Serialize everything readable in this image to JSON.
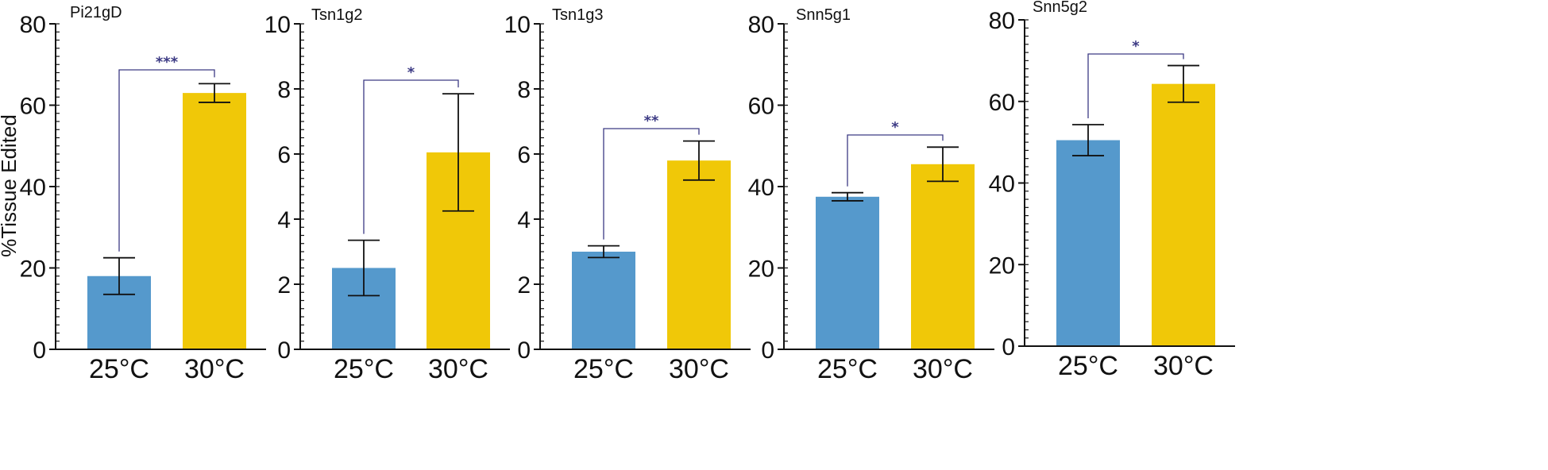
{
  "chart_data": {
    "type": "bar",
    "ylabel": "%Tissue Edited",
    "categories": [
      "25°C",
      "30°C"
    ],
    "colors": {
      "25°C": "#5599cc",
      "30°C": "#f0c808",
      "bracket": "#3c3a84",
      "axis": "#111111"
    },
    "panels": [
      {
        "title": "Pi21gD",
        "ylim": [
          0,
          80
        ],
        "yticks": [
          0,
          20,
          40,
          60,
          80
        ],
        "minor_step": 2,
        "values": [
          18,
          63
        ],
        "errors": [
          4.5,
          2.3
        ],
        "significance": "***"
      },
      {
        "title": "Tsn1g2",
        "ylim": [
          0,
          10
        ],
        "yticks": [
          0,
          2,
          4,
          6,
          8,
          10
        ],
        "minor_step": 0.25,
        "values": [
          2.5,
          6.05
        ],
        "errors": [
          0.85,
          1.8
        ],
        "significance": "*"
      },
      {
        "title": "Tsn1g3",
        "ylim": [
          0,
          10
        ],
        "yticks": [
          0,
          2,
          4,
          6,
          8,
          10
        ],
        "minor_step": 0.25,
        "values": [
          3.0,
          5.8
        ],
        "errors": [
          0.18,
          0.6
        ],
        "significance": "**"
      },
      {
        "title": "Snn5g1",
        "ylim": [
          0,
          80
        ],
        "yticks": [
          0,
          20,
          40,
          60,
          80
        ],
        "minor_step": 2,
        "values": [
          37.5,
          45.5
        ],
        "errors": [
          1.0,
          4.2
        ],
        "significance": "*"
      },
      {
        "title": "Snn5g2",
        "ylim": [
          0,
          80
        ],
        "yticks": [
          0,
          20,
          40,
          60,
          80
        ],
        "minor_step": 2,
        "values": [
          50.5,
          64.3
        ],
        "errors": [
          3.8,
          4.5
        ],
        "significance": "*"
      }
    ]
  }
}
